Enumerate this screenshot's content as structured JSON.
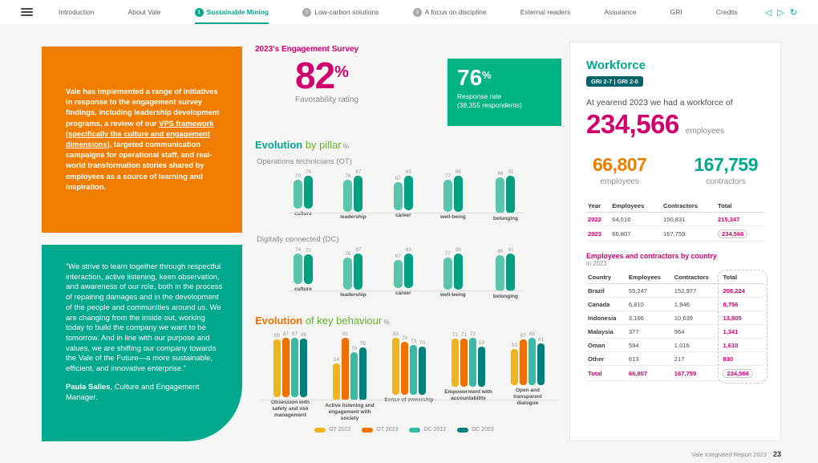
{
  "brand_colors": {
    "magenta": "#d0006e",
    "teal": "#00a88e",
    "orange": "#ed7000",
    "orange_box": "#f07d00",
    "green": "#64b32c",
    "yellow": "#f0b51d",
    "dark_teal": "#00807d",
    "badge_teal": "#00646b",
    "response_green": "#00b383"
  },
  "nav": {
    "items": [
      {
        "label": "Introduction",
        "active": false
      },
      {
        "label": "About Vale",
        "active": false
      },
      {
        "num": "1",
        "label": "Sustainable Mining",
        "active": true
      },
      {
        "num": "2",
        "label": "Low-carbon solutions",
        "active": false
      },
      {
        "num": "3",
        "label": "A focus on discipline",
        "active": false
      },
      {
        "label": "External readers",
        "active": false
      },
      {
        "label": "Assurance",
        "active": false
      },
      {
        "label": "GRI",
        "active": false
      },
      {
        "label": "Credits",
        "active": false
      }
    ],
    "icons": {
      "back": "◁",
      "forward": "▷",
      "replay": "↻"
    }
  },
  "orange_box": {
    "text_before": "Vale has implemented a range of initiatives in response to the engagement survey findings, including leadership development programs, a review of our ",
    "text_link": "VPS framework (specifically the culture and engagement dimensions),",
    "text_after": " targeted communication campaigns for operational staff, and real-world transformation stories shared by employees as a source of learning and inspiration."
  },
  "quote_box": {
    "quote": "“We strive to learn together through respectful interaction, active listening, keen observation, and awareness of our role, both in the process of repairing damages and in the development of the people and communities around us. We are changing from the inside out, working today to build the company we want to be tomorrow. And in line with our purpose and values, we are shifting our company towards the Vale of the Future—a more sustainable, efficient, and innovative enterprise.”",
    "author": "Paula Salles",
    "author_role": ", Culture and Engagement Manager."
  },
  "survey": {
    "title": "2023's Engagement Survey",
    "favorability_value": "82",
    "percent_sign": "%",
    "favorability_label": "Favorability rating",
    "response_value": "76",
    "response_label": "Response rate",
    "response_sub": "(38,355 respondents)"
  },
  "headings": {
    "pillar_bold": "Evolution",
    "pillar_rest": " by pillar",
    "pillar_pct": " %",
    "ot_label": "Operations technicians (OT)",
    "dc_label": "Digitally connected (DC)",
    "behaviour_bold": "Evolution",
    "behaviour_rest": " of key behaviour",
    "behaviour_pct": " %"
  },
  "chart_data": [
    {
      "type": "bar",
      "title": "Evolution by pillar % — Operations technicians (OT)",
      "categories": [
        "culture",
        "leadership",
        "career",
        "well-being",
        "belonging"
      ],
      "series": [
        {
          "name": "2022",
          "color": "#5ac5ab",
          "values": [
            70,
            76,
            67,
            77,
            86
          ]
        },
        {
          "name": "2023",
          "color": "#00a183",
          "values": [
            78,
            87,
            83,
            86,
            91
          ]
        }
      ],
      "ylim": [
        0,
        100
      ],
      "unit": "%"
    },
    {
      "type": "bar",
      "title": "Evolution by pillar % — Digitally connected (DC)",
      "categories": [
        "culture",
        "leadership",
        "career",
        "well-being",
        "belonging"
      ],
      "series": [
        {
          "name": "2022",
          "color": "#5ac5ab",
          "values": [
            74,
            76,
            67,
            77,
            86
          ]
        },
        {
          "name": "2023",
          "color": "#00a183",
          "values": [
            72,
            87,
            83,
            86,
            91
          ]
        }
      ],
      "ylim": [
        0,
        100
      ],
      "unit": "%"
    },
    {
      "type": "bar",
      "title": "Evolution of key behaviour %",
      "categories": [
        "Obsession with safety and risk management",
        "Active listening and engagement with society",
        "Sense of ownership",
        "Empowerment with accountability",
        "Open and transparent dialogue"
      ],
      "series": [
        {
          "name": "OT 2022",
          "color": "#f0b51d",
          "values": [
            85,
            54,
            83,
            71,
            53
          ]
        },
        {
          "name": "OT 2023",
          "color": "#ed7000",
          "values": [
            87,
            92,
            78,
            71,
            67
          ]
        },
        {
          "name": "DC 2022",
          "color": "#3ab9a4",
          "values": [
            87,
            70,
            73,
            72,
            69
          ]
        },
        {
          "name": "DC 2023",
          "color": "#00807d",
          "values": [
            86,
            78,
            70,
            59,
            61
          ]
        }
      ],
      "ylim": [
        0,
        100
      ],
      "unit": "%",
      "legend_position": "bottom"
    }
  ],
  "workforce": {
    "title": "Workforce",
    "gri_badge": "GRI 2-7 | GRI 2-8",
    "intro": "At yearend 2023 we had a workforce of",
    "total_value": "234,566",
    "total_label": "employees",
    "employees_value": "66,807",
    "employees_label": "employees",
    "contractors_value": "167,759",
    "contractors_label": "contractors",
    "year_table": {
      "headers": [
        "Year",
        "Employees",
        "Contractors",
        "Total"
      ],
      "rows": [
        [
          "2022",
          "64,516",
          "150,831",
          "215,347"
        ],
        [
          "2023",
          "66,807",
          "167,759",
          "234,566"
        ]
      ]
    },
    "country_title": "Employees and contractors by country",
    "country_sub": "in 2023",
    "country_table": {
      "headers": [
        "Country",
        "Employees",
        "Contractors",
        "Total"
      ],
      "rows": [
        [
          "Brazil",
          "55,247",
          "152,977",
          "208,224"
        ],
        [
          "Canada",
          "6,810",
          "1,946",
          "8,756"
        ],
        [
          "Indonesia",
          "3,166",
          "10,639",
          "13,805"
        ],
        [
          "Malaysia",
          "377",
          "964",
          "1,341"
        ],
        [
          "Oman",
          "594",
          "1,016",
          "1,610"
        ],
        [
          "Other",
          "613",
          "217",
          "830"
        ],
        [
          "Total",
          "66,807",
          "167,759",
          "234,566"
        ]
      ]
    }
  },
  "footer": {
    "text": "Vale Integrated Report 2023",
    "page": "23"
  }
}
